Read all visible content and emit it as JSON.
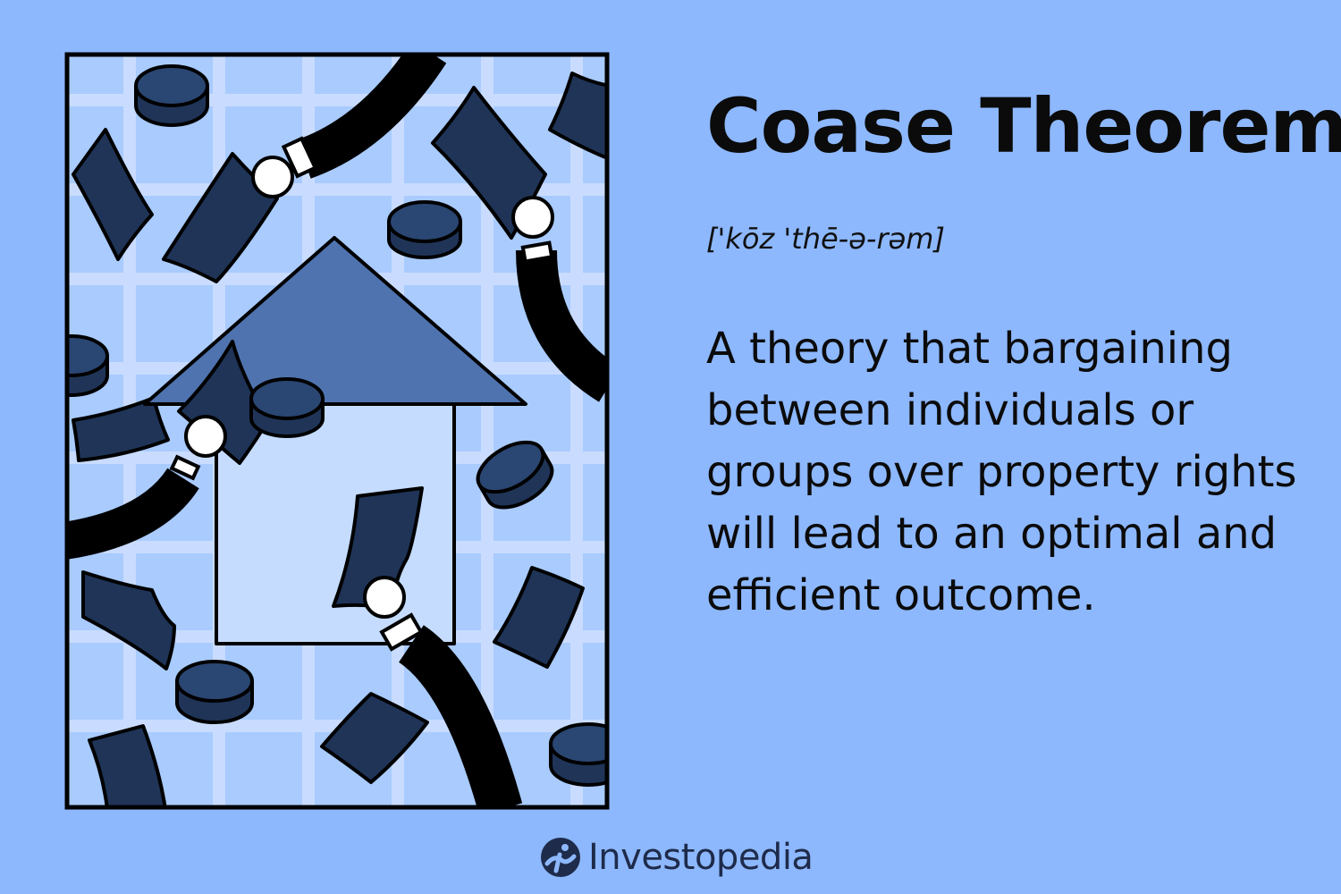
{
  "title": "Coase Theorem",
  "pronunciation": "['kōz 'thē-ə-rəm]",
  "definition": "A theory that bargaining between individuals or groups over property rights will lead to an optimal and efficient outcome.",
  "brand": {
    "name": "Investopedia",
    "logo_icon": "investopedia-logo-icon"
  },
  "colors": {
    "background": "#8DB8FE",
    "panel": "#A9CBFE",
    "grid": "#C9DCFF",
    "house_roof": "#4F73AF",
    "house_body": "#C5DCFE",
    "money": "#1F3457",
    "outline": "#000000"
  },
  "illustration": {
    "subject": "house-with-hands-trading-money-icon"
  }
}
